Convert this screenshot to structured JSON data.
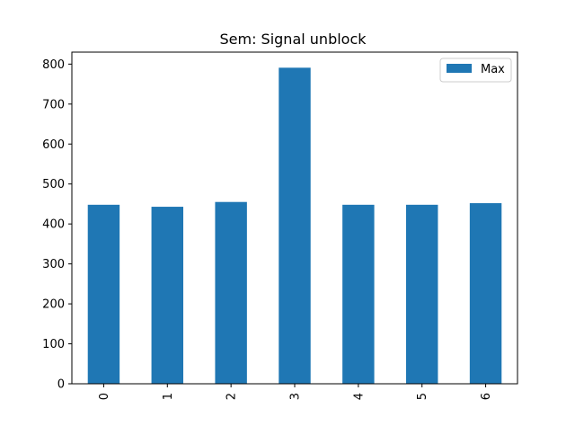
{
  "chart_data": {
    "type": "bar",
    "title": "Sem: Signal unblock",
    "xlabel": "",
    "ylabel": "",
    "categories": [
      "0",
      "1",
      "2",
      "3",
      "4",
      "5",
      "6"
    ],
    "series": [
      {
        "name": "Max",
        "values": [
          448,
          443,
          455,
          791,
          448,
          448,
          452
        ],
        "color": "#1f77b4"
      }
    ],
    "ylim": [
      0,
      830
    ],
    "yticks": [
      0,
      100,
      200,
      300,
      400,
      500,
      600,
      700,
      800
    ],
    "legend": "top-right",
    "grid": false
  }
}
